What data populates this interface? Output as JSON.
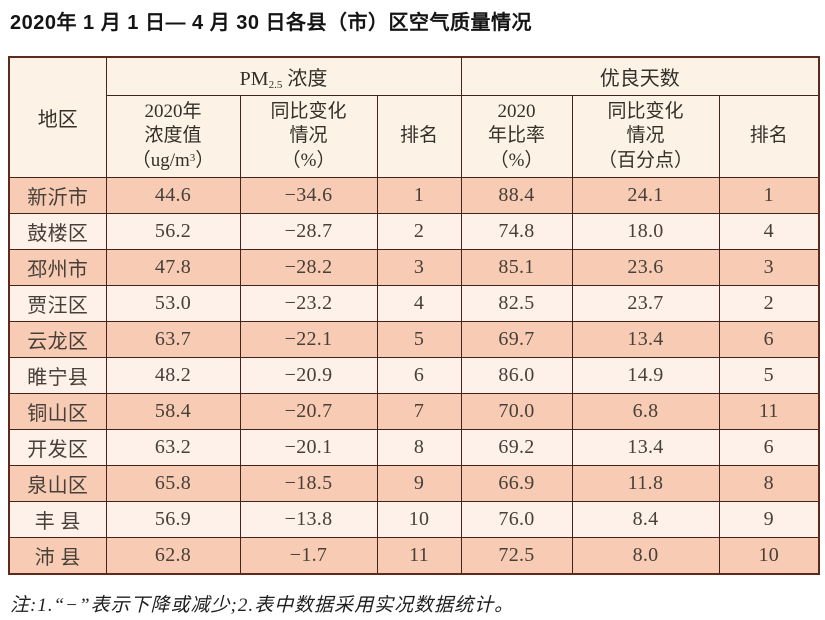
{
  "title": "2020年 1 月 1 日— 4 月 30 日各县（市）区空气质量情况",
  "table": {
    "header": {
      "region": "地区",
      "pm_group_prefix": "PM",
      "pm_group_sub": "2.5",
      "pm_group_suffix": " 浓度",
      "good_days_group": "优良天数",
      "concentration_col": {
        "line1": "2020年",
        "line2": "浓度值",
        "unit_pre": "（ug/m",
        "unit_sup": "3",
        "unit_post": "）"
      },
      "pm_change_col": {
        "line1": "同比变化",
        "line2": "情况",
        "line3": "（%）"
      },
      "pm_rank_col": "排名",
      "ratio_col": {
        "line1": "2020",
        "line2": "年比率",
        "line3": "（%）"
      },
      "days_change_col": {
        "line1": "同比变化",
        "line2": "情况",
        "line3": "（百分点）"
      },
      "days_rank_col": "排名"
    },
    "rows": [
      {
        "region": "新沂市",
        "pm_value": "44.6",
        "pm_change": "−34.6",
        "pm_rank": "1",
        "ratio": "88.4",
        "days_change": "24.1",
        "days_rank": "1"
      },
      {
        "region": "鼓楼区",
        "pm_value": "56.2",
        "pm_change": "−28.7",
        "pm_rank": "2",
        "ratio": "74.8",
        "days_change": "18.0",
        "days_rank": "4"
      },
      {
        "region": "邳州市",
        "pm_value": "47.8",
        "pm_change": "−28.2",
        "pm_rank": "3",
        "ratio": "85.1",
        "days_change": "23.6",
        "days_rank": "3"
      },
      {
        "region": "贾汪区",
        "pm_value": "53.0",
        "pm_change": "−23.2",
        "pm_rank": "4",
        "ratio": "82.5",
        "days_change": "23.7",
        "days_rank": "2"
      },
      {
        "region": "云龙区",
        "pm_value": "63.7",
        "pm_change": "−22.1",
        "pm_rank": "5",
        "ratio": "69.7",
        "days_change": "13.4",
        "days_rank": "6"
      },
      {
        "region": "睢宁县",
        "pm_value": "48.2",
        "pm_change": "−20.9",
        "pm_rank": "6",
        "ratio": "86.0",
        "days_change": "14.9",
        "days_rank": "5"
      },
      {
        "region": "铜山区",
        "pm_value": "58.4",
        "pm_change": "−20.7",
        "pm_rank": "7",
        "ratio": "70.0",
        "days_change": "6.8",
        "days_rank": "11"
      },
      {
        "region": "开发区",
        "pm_value": "63.2",
        "pm_change": "−20.1",
        "pm_rank": "8",
        "ratio": "69.2",
        "days_change": "13.4",
        "days_rank": "6"
      },
      {
        "region": "泉山区",
        "pm_value": "65.8",
        "pm_change": "−18.5",
        "pm_rank": "9",
        "ratio": "66.9",
        "days_change": "11.8",
        "days_rank": "8"
      },
      {
        "region": "丰 县",
        "pm_value": "56.9",
        "pm_change": "−13.8",
        "pm_rank": "10",
        "ratio": "76.0",
        "days_change": "8.4",
        "days_rank": "9"
      },
      {
        "region": "沛 县",
        "pm_value": "62.8",
        "pm_change": "−1.7",
        "pm_rank": "11",
        "ratio": "72.5",
        "days_change": "8.0",
        "days_rank": "10"
      }
    ]
  },
  "footnote": "注:1.“−”表示下降或减少;2.表中数据采用实况数据统计。",
  "colors": {
    "row_salmon": "#f8ccb4",
    "row_light": "#fdf1e9",
    "header_cream": "#fcf3e6",
    "border_outer": "#5e2a1c",
    "border_inner": "#42241a",
    "text_dark": "#474039"
  }
}
